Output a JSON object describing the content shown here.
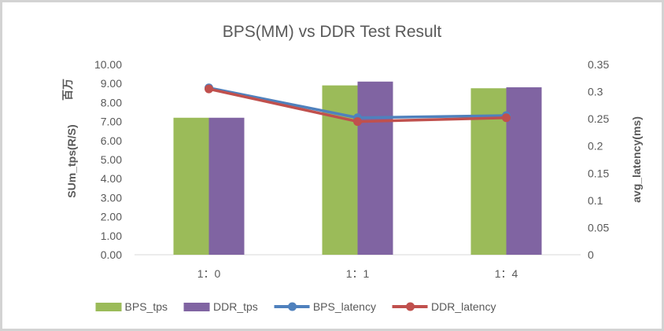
{
  "chart_data": {
    "type": "combo-bar-line",
    "title": "BPS(MM) vs DDR Test Result",
    "categories": [
      "1：0",
      "1：1",
      "1：4"
    ],
    "bar_series": [
      {
        "name": "BPS_tps",
        "color": "#9bbb59",
        "axis": "left",
        "values": [
          7.2,
          8.9,
          8.75
        ]
      },
      {
        "name": "DDR_tps",
        "color": "#8064a2",
        "axis": "left",
        "values": [
          7.2,
          9.1,
          8.8
        ]
      }
    ],
    "line_series": [
      {
        "name": "BPS_latency",
        "color": "#4f81bd",
        "axis": "right",
        "values": [
          0.307,
          0.252,
          0.256
        ]
      },
      {
        "name": "DDR_latency",
        "color": "#c0504d",
        "axis": "right",
        "values": [
          0.305,
          0.245,
          0.252
        ]
      }
    ],
    "left_axis": {
      "title": "SUm_tps(R/S)",
      "units_label": "百万",
      "min": 0,
      "max": 10,
      "tick_labels": [
        "0.00",
        "1.00",
        "2.00",
        "3.00",
        "4.00",
        "5.00",
        "6.00",
        "7.00",
        "8.00",
        "9.00",
        "10.00"
      ]
    },
    "right_axis": {
      "title": "avg_latency(ms)",
      "min": 0,
      "max": 0.35,
      "tick_labels": [
        "0",
        "0.05",
        "0.1",
        "0.15",
        "0.2",
        "0.25",
        "0.3",
        "0.35"
      ]
    },
    "legend_position": "bottom",
    "gridlines": false
  },
  "styles": {
    "text_color": "#595959",
    "axis_line_color": "#d9d9d9",
    "frame_border_color": "#d3d3d3",
    "background": "#ffffff"
  }
}
